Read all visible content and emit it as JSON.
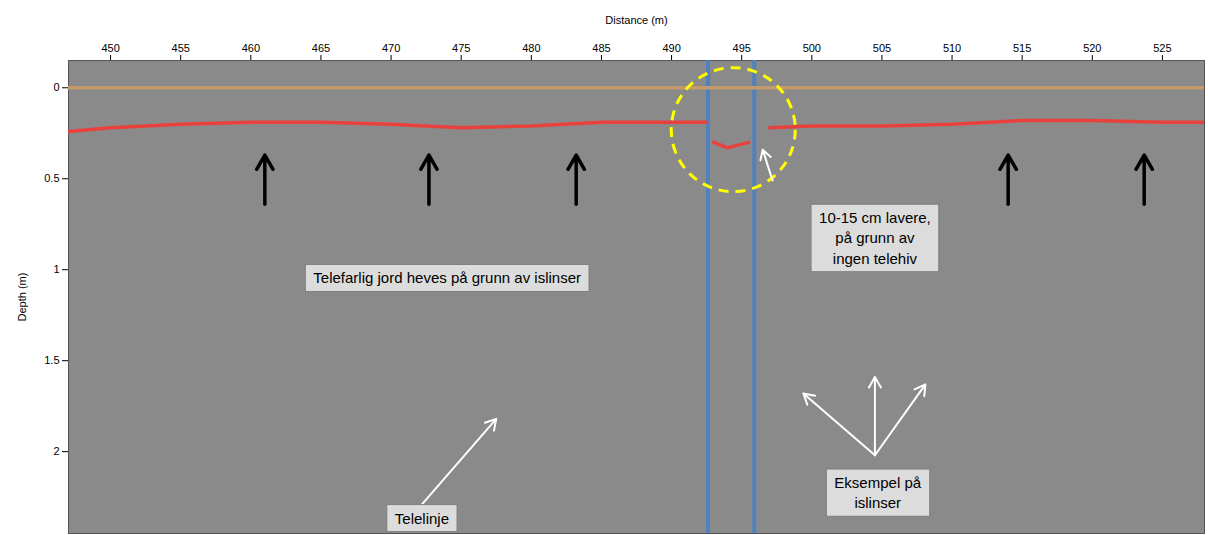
{
  "chart_data": {
    "type": "radargram",
    "x_label": "Distance (m)",
    "y_label": "Depth (m)",
    "xlim": [
      447,
      528
    ],
    "xticks": [
      450,
      455,
      460,
      465,
      470,
      475,
      480,
      485,
      490,
      495,
      500,
      505,
      510,
      515,
      520,
      525
    ],
    "ylim": [
      -0.15,
      2.45
    ],
    "yticks": [
      0,
      0.5,
      1,
      1.5,
      2
    ],
    "series": [
      {
        "color": "#c49a6c",
        "x": [
          447,
          528
        ],
        "values": [
          0,
          0
        ]
      },
      {
        "color": "#e8413c",
        "x": [
          447,
          450,
          455,
          460,
          465,
          470,
          475,
          480,
          485,
          490,
          492.5,
          492.8,
          493,
          494,
          495.5,
          496.5,
          497,
          500,
          505,
          510,
          515,
          520,
          525,
          528
        ],
        "values": [
          0.24,
          0.22,
          0.2,
          0.19,
          0.19,
          0.2,
          0.22,
          0.21,
          0.19,
          0.19,
          0.19,
          null,
          0.3,
          0.33,
          0.3,
          null,
          0.22,
          0.21,
          0.21,
          0.2,
          0.18,
          0.18,
          0.19,
          0.19
        ]
      }
    ],
    "vertical_lines": {
      "color": "#4f81bd",
      "x": [
        492.6,
        495.9
      ]
    },
    "circle": {
      "color": "#ffff00",
      "line_style": "dashed",
      "x": 494.4,
      "y": 0.23
    },
    "arrows": [
      {
        "color": "#000000",
        "segments": [
          {
            "x1": 461.0,
            "y1": 0.64,
            "x2": 461.0,
            "y2": 0.37
          },
          {
            "x1": 472.7,
            "y1": 0.64,
            "x2": 472.7,
            "y2": 0.37
          },
          {
            "x1": 483.2,
            "y1": 0.64,
            "x2": 483.2,
            "y2": 0.37
          },
          {
            "x1": 514.0,
            "y1": 0.64,
            "x2": 514.0,
            "y2": 0.37
          },
          {
            "x1": 523.7,
            "y1": 0.64,
            "x2": 523.7,
            "y2": 0.37
          }
        ]
      },
      {
        "color": "#ffffff",
        "segments": [
          {
            "x1": 472.2,
            "y1": 2.29,
            "x2": 477.5,
            "y2": 1.82
          },
          {
            "x1": 497.2,
            "y1": 0.51,
            "x2": 496.5,
            "y2": 0.34
          },
          {
            "x1": 504.5,
            "y1": 2.02,
            "x2": 499.4,
            "y2": 1.68
          },
          {
            "x1": 504.5,
            "y1": 2.02,
            "x2": 504.5,
            "y2": 1.59
          },
          {
            "x1": 504.5,
            "y1": 2.02,
            "x2": 508.1,
            "y2": 1.63
          }
        ]
      }
    ],
    "annotations": [
      {
        "text": "Telefarlig jord heves på grunn av islinser",
        "x": 474.0,
        "y": 1.04
      },
      {
        "text": "10-15 cm lavere,\npå grunn av\ningen telehiv",
        "x": 504.5,
        "y": 0.82
      },
      {
        "text": "Telelinje",
        "x": 472.2,
        "y": 2.36
      },
      {
        "text": "Eksempel på\nislinser",
        "x": 504.7,
        "y": 2.22
      }
    ]
  }
}
